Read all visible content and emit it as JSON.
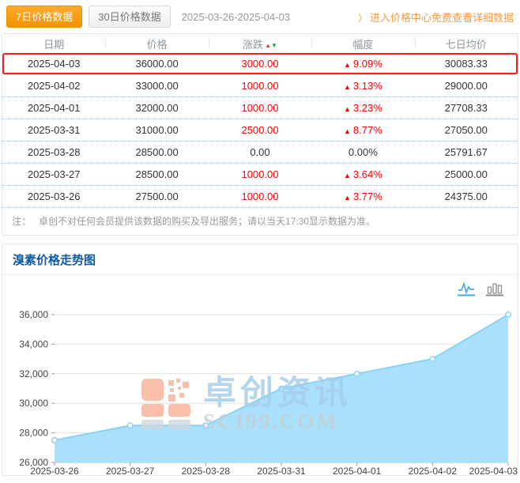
{
  "header": {
    "tab7_label": "7日价格数据",
    "tab30_label": "30日价格数据",
    "date_range": "2025-03-26-2025-04-03",
    "link_arrow": "〉",
    "link_label": "进入价格中心免费查看详细数据"
  },
  "table": {
    "headers": [
      "日期",
      "价格",
      "涨跌",
      "幅度",
      "七日均价"
    ],
    "sort_asc": "▲",
    "sort_desc": "▼",
    "up_arrow": "▲",
    "rows": [
      {
        "date": "2025-04-03",
        "price": "36000.00",
        "change": "3000.00",
        "pct": "9.09%",
        "up": true,
        "avg7": "30083.33",
        "highlight": true
      },
      {
        "date": "2025-04-02",
        "price": "33000.00",
        "change": "1000.00",
        "pct": "3.13%",
        "up": true,
        "avg7": "29000.00",
        "highlight": false
      },
      {
        "date": "2025-04-01",
        "price": "32000.00",
        "change": "1000.00",
        "pct": "3.23%",
        "up": true,
        "avg7": "27708.33",
        "highlight": false
      },
      {
        "date": "2025-03-31",
        "price": "31000.00",
        "change": "2500.00",
        "pct": "8.77%",
        "up": true,
        "avg7": "27050.00",
        "highlight": false
      },
      {
        "date": "2025-03-28",
        "price": "28500.00",
        "change": "0.00",
        "pct": "0.00%",
        "up": false,
        "avg7": "25791.67",
        "highlight": false
      },
      {
        "date": "2025-03-27",
        "price": "28500.00",
        "change": "1000.00",
        "pct": "3.64%",
        "up": true,
        "avg7": "25000.00",
        "highlight": false
      },
      {
        "date": "2025-03-26",
        "price": "27500.00",
        "change": "1000.00",
        "pct": "3.77%",
        "up": true,
        "avg7": "24375.00",
        "highlight": false
      }
    ],
    "note_label": "注：",
    "note_text": "卓创不对任何会员提供该数据的购买及导出服务；请以当天17:30显示数据为准。"
  },
  "chart": {
    "title": "溴素价格走势图",
    "tools": [
      {
        "name": "line-chart-icon",
        "active": true
      },
      {
        "name": "bar-chart-icon",
        "active": false
      }
    ],
    "watermark_cn": "卓创资讯",
    "watermark_en": "SCI99.COM"
  },
  "chart_data": {
    "type": "area",
    "title": "溴素价格走势图",
    "x": [
      "2025-03-26",
      "2025-03-27",
      "2025-03-28",
      "2025-03-31",
      "2025-04-01",
      "2025-04-02",
      "2025-04-03"
    ],
    "values": [
      27500,
      28500,
      28500,
      31000,
      32000,
      33000,
      36000
    ],
    "ylim": [
      26000,
      36000
    ],
    "ytick_step": 2000,
    "grid": true,
    "legend": "none",
    "fill_color": "#abe0fa",
    "stroke_color": "#85d2f6",
    "marker": "white-circle"
  },
  "colors": {
    "accent_orange": "#f39200",
    "link_orange": "#ff9a3d",
    "red": "#ff0000",
    "sort_up_red": "#e03333",
    "sort_down_green": "#1f9e3d",
    "chart_title_blue": "#0d5ba5",
    "highlight_border": "#fb1b1b"
  }
}
